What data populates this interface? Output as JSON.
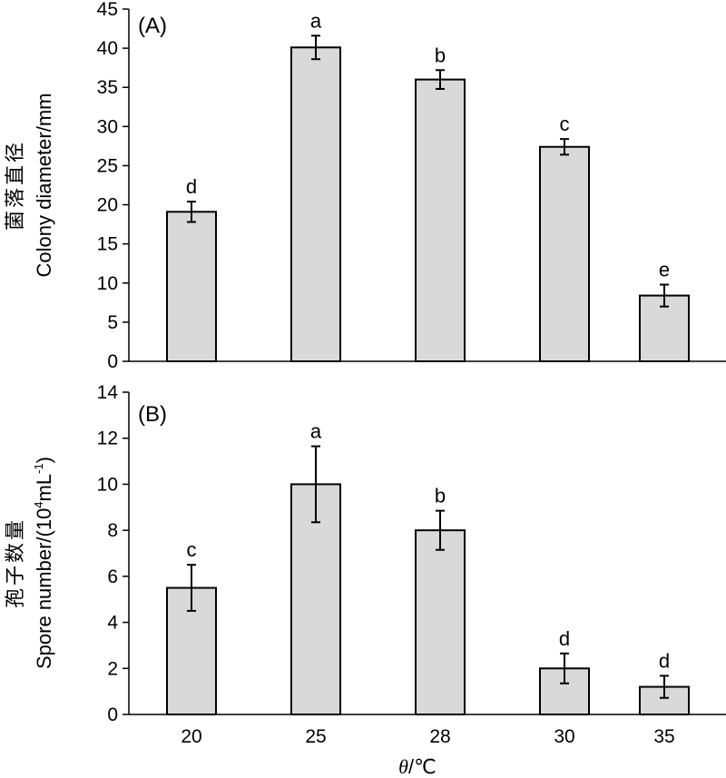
{
  "colors": {
    "bar_fill": "#d9d9d9",
    "bar_stroke": "#000000",
    "axis": "#000000",
    "background": "#ffffff"
  },
  "x_axis": {
    "categories": [
      "20",
      "25",
      "28",
      "30",
      "35"
    ],
    "title_symbol": "θ",
    "title_unit": "/℃"
  },
  "chart_data": [
    {
      "type": "bar",
      "panel_label": "(A)",
      "ylabel_cn": "菌落直径",
      "ylabel": "Colony diameter/mm",
      "categories": [
        "20",
        "25",
        "28",
        "30",
        "35"
      ],
      "values": [
        19.1,
        40.1,
        36.0,
        27.4,
        8.4
      ],
      "errors": [
        1.3,
        1.5,
        1.2,
        1.0,
        1.4
      ],
      "significance": [
        "d",
        "a",
        "b",
        "c",
        "e"
      ],
      "ylim": [
        0,
        45
      ],
      "yticks": [
        0,
        5,
        10,
        15,
        20,
        25,
        30,
        35,
        40,
        45
      ],
      "grid": false
    },
    {
      "type": "bar",
      "panel_label": "(B)",
      "ylabel_cn": "孢子数量",
      "ylabel_main": "Spore number/(10",
      "ylabel_sup1": "4",
      "ylabel_mid": "mL",
      "ylabel_sup2": "-1",
      "ylabel_end": ")",
      "categories": [
        "20",
        "25",
        "28",
        "30",
        "35"
      ],
      "values": [
        5.5,
        10.0,
        8.0,
        2.0,
        1.2
      ],
      "errors": [
        1.0,
        1.65,
        0.85,
        0.65,
        0.48
      ],
      "significance": [
        "c",
        "a",
        "b",
        "d",
        "d"
      ],
      "ylim": [
        0,
        14
      ],
      "yticks": [
        0,
        2,
        4,
        6,
        8,
        10,
        12,
        14
      ],
      "grid": false
    }
  ]
}
